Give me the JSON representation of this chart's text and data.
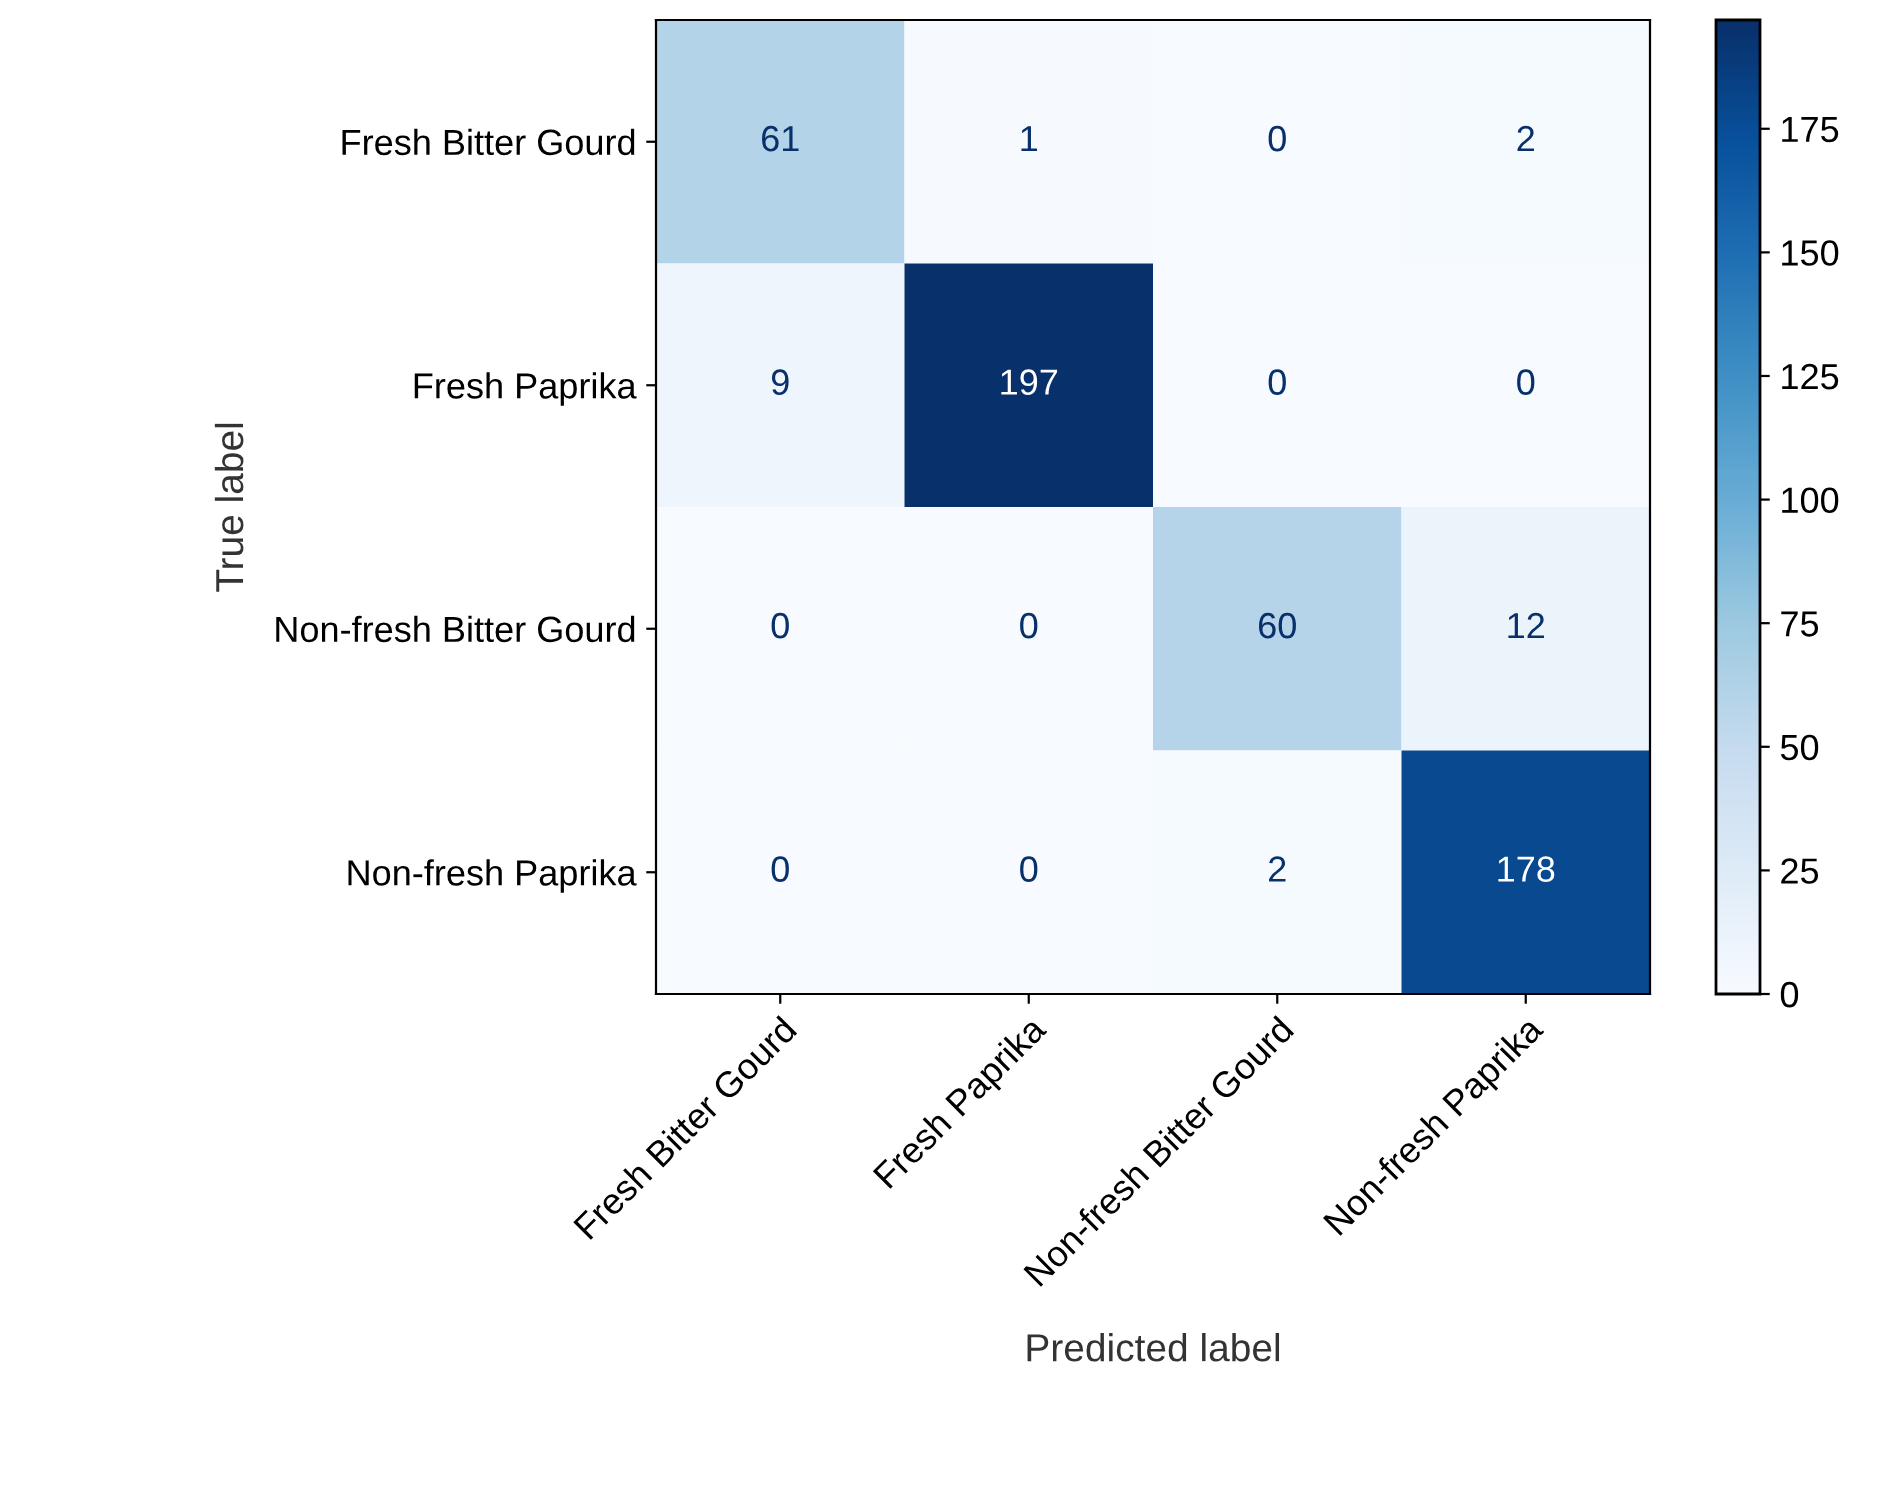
{
  "chart_data": {
    "type": "heatmap",
    "xlabel": "Predicted label",
    "ylabel": "True label",
    "categories": [
      "Fresh Bitter Gourd",
      "Fresh Paprika",
      "Non-fresh Bitter Gourd",
      "Non-fresh Paprika"
    ],
    "y_categories": [
      "Fresh Bitter Gourd",
      "Fresh Paprika",
      "Non-fresh Bitter Gourd",
      "Non-fresh Paprika"
    ],
    "cells": [
      [
        61,
        1,
        0,
        2
      ],
      [
        9,
        197,
        0,
        0
      ],
      [
        0,
        0,
        60,
        12
      ],
      [
        0,
        0,
        2,
        178
      ]
    ],
    "clim": [
      0,
      197
    ],
    "cticks": [
      0,
      25,
      50,
      75,
      100,
      125,
      150,
      175
    ],
    "data_labels": true,
    "grid": false
  }
}
